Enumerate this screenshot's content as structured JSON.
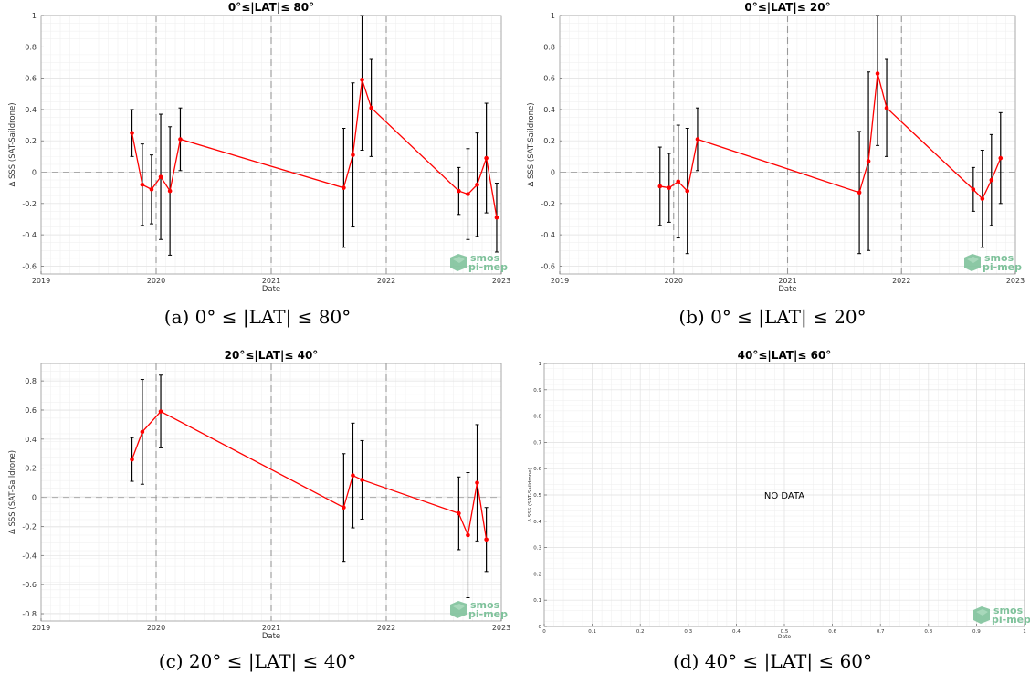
{
  "logo": {
    "line1": "smos",
    "line2": "pi-mep",
    "color": "#7fc29b"
  },
  "colors": {
    "line": "#ff0000",
    "errorbar": "#000000",
    "vline": "#999999",
    "zero": "#aaaaaa"
  },
  "panels": [
    {
      "id": "a",
      "caption": "(a) 0° ≤ |LAT| ≤ 80°",
      "chart_data": {
        "type": "line",
        "title": "0°≤|LAT|≤ 80°",
        "xlabel": "Date",
        "ylabel": "Δ SSS (SAT-Saildrone)",
        "xlim": [
          2019,
          2023
        ],
        "ylim": [
          -0.65,
          1.0
        ],
        "xticks": [
          2019,
          2020,
          2021,
          2022,
          2023
        ],
        "yticks": [
          -0.6,
          -0.4,
          -0.2,
          0,
          0.2,
          0.4,
          0.6,
          0.8,
          1
        ],
        "ytick_labels": [
          "-0.6",
          "-0.4",
          "-0.2",
          "0",
          "0.2",
          "0.4",
          "0.6",
          "0.8",
          "1"
        ],
        "vlines": [
          2020,
          2021,
          2022
        ],
        "grid": true,
        "series": [
          {
            "x": [
              2019.79,
              2019.88,
              2019.96,
              2020.04,
              2020.12,
              2020.21,
              2021.63,
              2021.71,
              2021.79,
              2021.87,
              2022.63,
              2022.71,
              2022.79,
              2022.87,
              2022.96
            ],
            "y": [
              0.25,
              -0.08,
              -0.11,
              -0.03,
              -0.12,
              0.21,
              -0.1,
              0.11,
              0.59,
              0.41,
              -0.12,
              -0.14,
              -0.08,
              0.09,
              -0.29
            ],
            "err": [
              0.15,
              0.26,
              0.22,
              0.4,
              0.41,
              0.2,
              0.38,
              0.46,
              0.45,
              0.31,
              0.15,
              0.29,
              0.33,
              0.35,
              0.22
            ]
          }
        ]
      }
    },
    {
      "id": "b",
      "caption": "(b) 0° ≤ |LAT| ≤ 20°",
      "chart_data": {
        "type": "line",
        "title": "0°≤|LAT|≤ 20°",
        "xlabel": "Date",
        "ylabel": "Δ SSS (SAT-Saildrone)",
        "xlim": [
          2019,
          2023
        ],
        "ylim": [
          -0.65,
          1.0
        ],
        "xticks": [
          2019,
          2020,
          2021,
          2022,
          2023
        ],
        "yticks": [
          -0.6,
          -0.4,
          -0.2,
          0,
          0.2,
          0.4,
          0.6,
          0.8,
          1
        ],
        "ytick_labels": [
          "-0.6",
          "-0.4",
          "-0.2",
          "0",
          "0.2",
          "0.4",
          "0.6",
          "0.8",
          "1"
        ],
        "vlines": [
          2020,
          2021,
          2022
        ],
        "grid": true,
        "series": [
          {
            "x": [
              2019.88,
              2019.96,
              2020.04,
              2020.12,
              2020.21,
              2021.63,
              2021.71,
              2021.79,
              2021.87,
              2022.63,
              2022.71,
              2022.79,
              2022.87
            ],
            "y": [
              -0.09,
              -0.1,
              -0.06,
              -0.12,
              0.21,
              -0.13,
              0.07,
              0.63,
              0.41,
              -0.11,
              -0.17,
              -0.05,
              0.09
            ],
            "err": [
              0.25,
              0.22,
              0.36,
              0.4,
              0.2,
              0.39,
              0.57,
              0.46,
              0.31,
              0.14,
              0.31,
              0.29,
              0.29
            ]
          }
        ]
      }
    },
    {
      "id": "c",
      "caption": "(c) 20° ≤ |LAT| ≤ 40°",
      "chart_data": {
        "type": "line",
        "title": "20°≤|LAT|≤ 40°",
        "xlabel": "Date",
        "ylabel": "Δ SSS (SAT-Saildrone)",
        "xlim": [
          2019,
          2023
        ],
        "ylim": [
          -0.85,
          0.92
        ],
        "xticks": [
          2019,
          2020,
          2021,
          2022,
          2023
        ],
        "yticks": [
          -0.8,
          -0.6,
          -0.4,
          -0.2,
          0,
          0.2,
          0.4,
          0.6,
          0.8
        ],
        "ytick_labels": [
          "-0.8",
          "-0.6",
          "-0.4",
          "-0.2",
          "0",
          "0.2",
          "0.4",
          "0.6",
          "0.8"
        ],
        "vlines": [
          2020,
          2021,
          2022
        ],
        "grid": true,
        "series": [
          {
            "x": [
              2019.79,
              2019.88,
              2020.04,
              2021.63,
              2021.71,
              2021.79,
              2022.63,
              2022.71,
              2022.79,
              2022.87
            ],
            "y": [
              0.26,
              0.45,
              0.59,
              -0.07,
              0.15,
              0.12,
              -0.11,
              -0.26,
              0.1,
              -0.29
            ],
            "err": [
              0.15,
              0.36,
              0.25,
              0.37,
              0.36,
              0.27,
              0.25,
              0.43,
              0.4,
              0.22
            ]
          }
        ]
      }
    },
    {
      "id": "d",
      "caption": "(d) 40° ≤ |LAT| ≤ 60°",
      "chart_data": {
        "type": "line",
        "title": "40°≤|LAT|≤ 60°",
        "xlabel": "Date",
        "ylabel": "Δ SSS (SAT-Saildrone)",
        "xlim": [
          0,
          1
        ],
        "ylim": [
          0,
          1
        ],
        "xticks": [
          0,
          0.1,
          0.2,
          0.3,
          0.4,
          0.5,
          0.6,
          0.7,
          0.8,
          0.9,
          1
        ],
        "xtick_labels": [
          "0",
          "0.1",
          "0.2",
          "0.3",
          "0.4",
          "0.5",
          "0.6",
          "0.7",
          "0.8",
          "0.9",
          "1"
        ],
        "yticks": [
          0,
          0.1,
          0.2,
          0.3,
          0.4,
          0.5,
          0.6,
          0.7,
          0.8,
          0.9,
          1
        ],
        "ytick_labels": [
          "0",
          "0.1",
          "0.2",
          "0.3",
          "0.4",
          "0.5",
          "0.6",
          "0.7",
          "0.8",
          "0.9",
          "1"
        ],
        "vlines": [],
        "grid": true,
        "annotation": "NO DATA",
        "series": []
      }
    }
  ]
}
